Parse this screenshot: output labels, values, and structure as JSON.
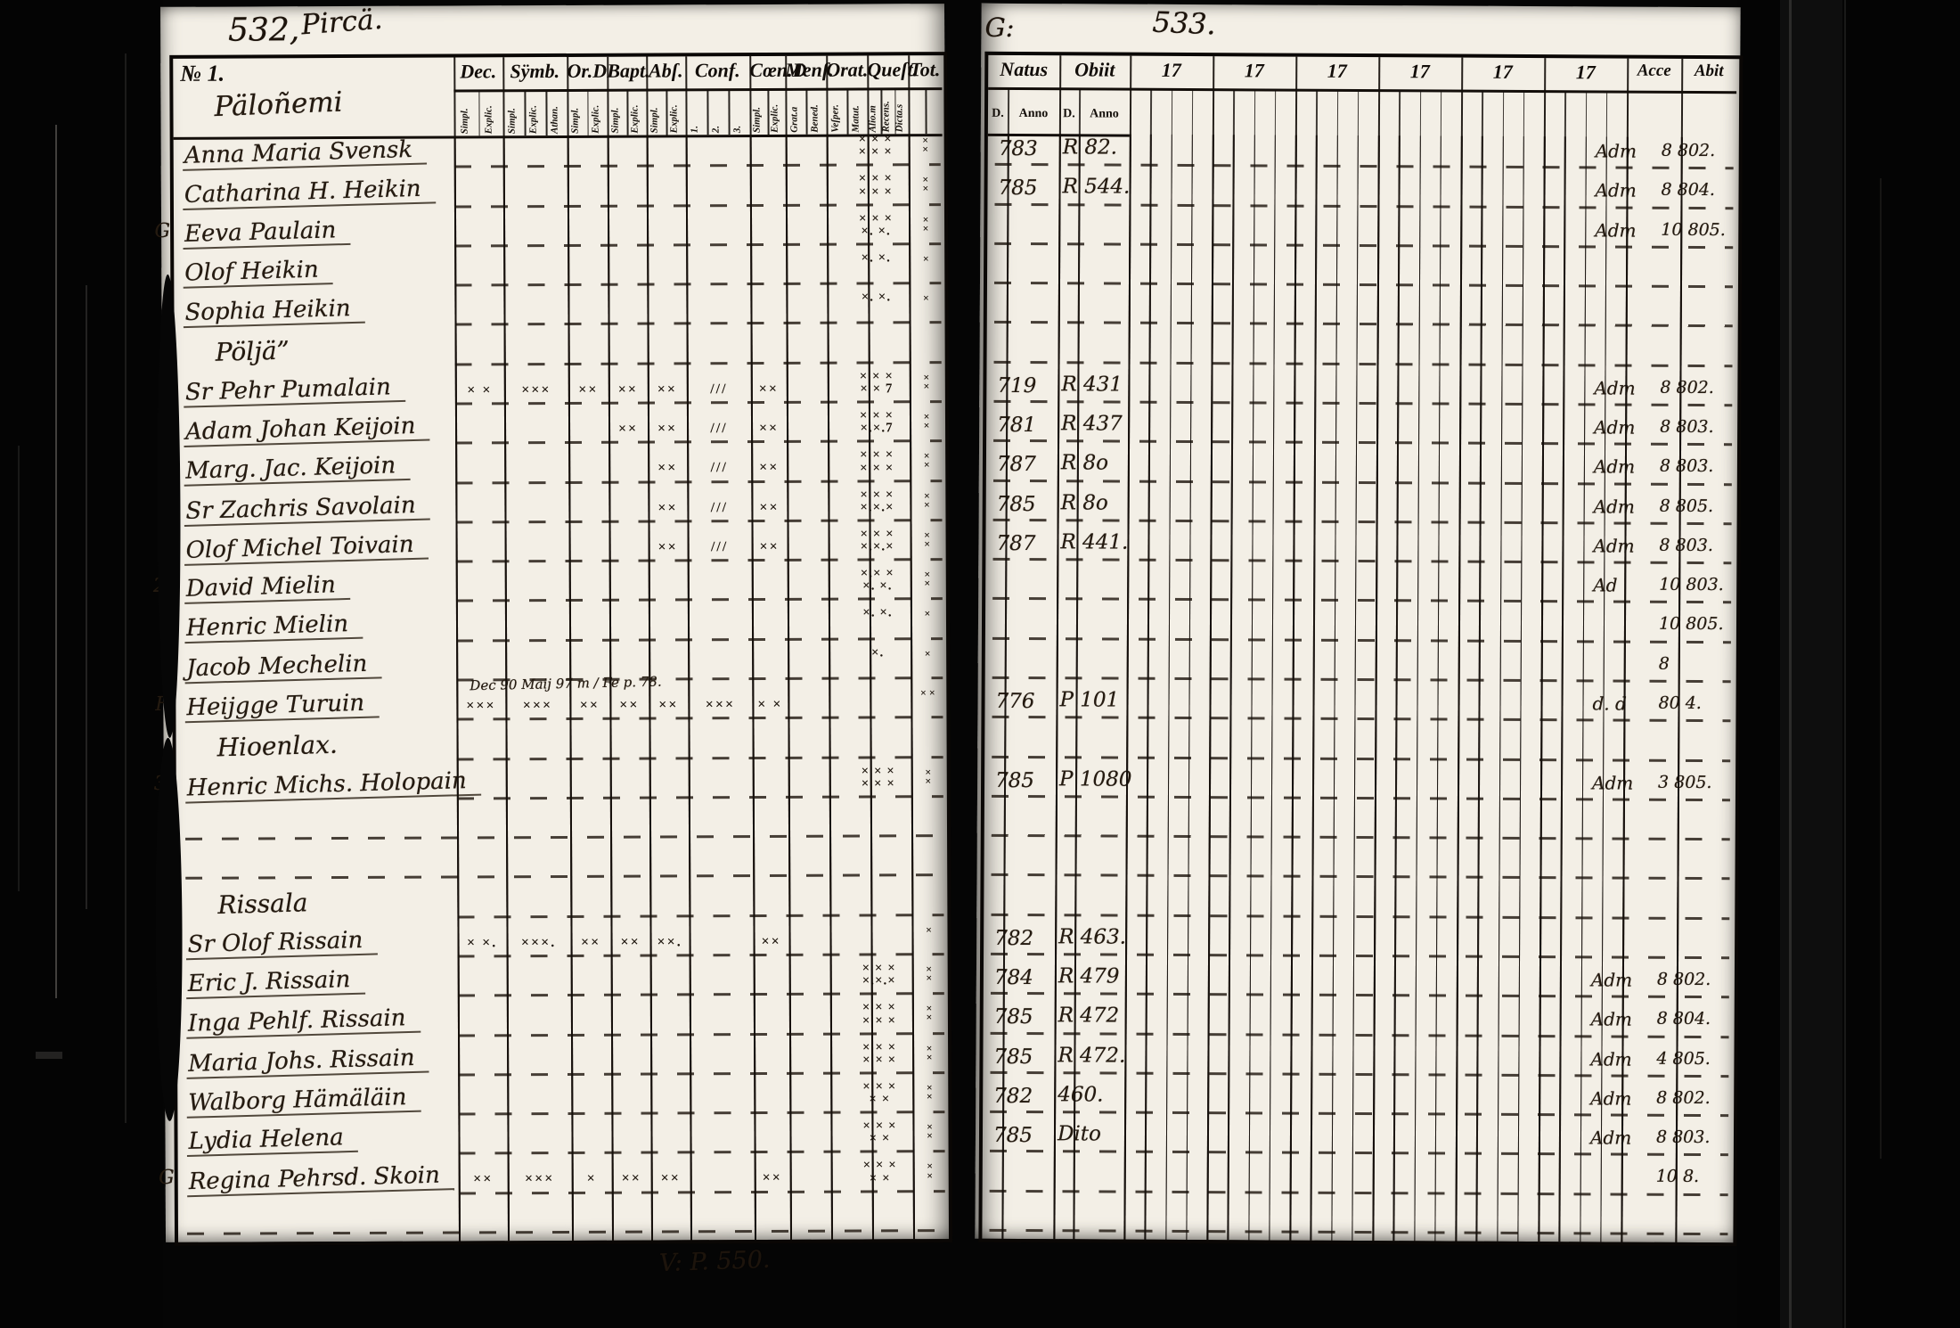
{
  "annotations": {
    "left_page_number": "532,",
    "left_note": "Pircä.",
    "right_letter": "G:",
    "right_page_number": "533.",
    "footer_note": "V: P. 550."
  },
  "colors": {
    "paper": "#f3efe6",
    "ink": "#241a10",
    "scan_black": "#050505"
  },
  "left_table": {
    "corner_no": "№ 1.",
    "corner_title": "Päloñemi",
    "columns": [
      {
        "id": "dec",
        "label": "Dec.",
        "subs": [
          "Simpl.",
          "Explic."
        ]
      },
      {
        "id": "symb",
        "label": "Sÿmb.",
        "subs": [
          "Simpl.",
          "Explic.",
          "Athan."
        ]
      },
      {
        "id": "ord",
        "label": "Or.D",
        "subs": [
          "Simpl.",
          "Explic."
        ]
      },
      {
        "id": "bapt",
        "label": "Bapt.",
        "subs": [
          "Simpl.",
          "Explic."
        ]
      },
      {
        "id": "abs",
        "label": "Abſ.",
        "subs": [
          "Simpl.",
          "Explic."
        ]
      },
      {
        "id": "conf",
        "label": "Conf.",
        "subs": [
          "1.",
          "2.",
          "3."
        ]
      },
      {
        "id": "coen",
        "label": "Cœn.D",
        "subs": [
          "Simpl.",
          "Explic."
        ]
      },
      {
        "id": "mens",
        "label": "Menſ.",
        "subs": [
          "Grat.a",
          "Bened."
        ]
      },
      {
        "id": "orat",
        "label": "Orat.",
        "subs": [
          "Veſper.",
          "Matut."
        ]
      },
      {
        "id": "quest",
        "label": "Queſt.",
        "subs": [
          "Alio.m",
          "Recens.",
          "Dicta.s"
        ]
      },
      {
        "id": "tot",
        "label": "Tot.",
        "subs": [
          "",
          ""
        ]
      }
    ]
  },
  "right_table": {
    "natus_label": "Natus",
    "obiit_label": "Obiit",
    "year_label": "17",
    "year_column_count": 6,
    "natus_subs": [
      "D.",
      "Anno"
    ],
    "obiit_subs": [
      "D.",
      "Anno"
    ],
    "acce_label": "Acce",
    "abit_label": "Abit"
  },
  "rows": [
    {
      "type": "person",
      "name": "Anna Maria Svensk",
      "quest": "× × ×\n× × ×",
      "edge": "×\n×",
      "natus": "783",
      "obiit": "R 82.",
      "acce": "Adm",
      "abit": "8 802."
    },
    {
      "type": "person",
      "name": "Catharina H. Heikin",
      "quest": "× × ×\n× × ×",
      "edge": "×\n×",
      "natus": "785",
      "obiit": "R 544.",
      "acce": "Adm",
      "abit": "8 804."
    },
    {
      "type": "person",
      "prefix": "G",
      "name": "Eeva Paulain",
      "quest": "× × ×\n×. ×.",
      "edge": "×\n×",
      "acce": "Adm",
      "abit": "10 805."
    },
    {
      "type": "person",
      "name": "Olof Heikin",
      "quest": "×. ×.",
      "edge": "×"
    },
    {
      "type": "person",
      "name": "Sophia Heikin",
      "quest": "×. ×.",
      "edge": "×"
    },
    {
      "type": "heading",
      "name": "Pöljä”"
    },
    {
      "type": "person",
      "name": "Sr Pehr Pumalain",
      "marks": {
        "dec": "× ×",
        "symb": "×××",
        "ord": "××",
        "bapt": "××",
        "abs": "××",
        "conf": "///",
        "coen": "××"
      },
      "quest": "× × ×\n× × 7",
      "edge": "×\n×",
      "natus": "719",
      "obiit": "R 431",
      "acce": "Adm",
      "abit": "8 802."
    },
    {
      "type": "person",
      "name": "Adam Johan Keijoin",
      "marks": {
        "bapt": "××",
        "abs": "××",
        "conf": "///",
        "coen": "××"
      },
      "quest": "× × ×\n×.×.7",
      "edge": "×\n×",
      "natus": "781",
      "obiit": "R 437",
      "acce": "Adm",
      "abit": "8 803."
    },
    {
      "type": "person",
      "name": "Marg. Jac. Keijoin",
      "marks": {
        "abs": "××",
        "conf": "///",
        "coen": "××"
      },
      "quest": "× × ×\n× × ×",
      "edge": "×\n×",
      "natus": "787",
      "obiit": "R 8o",
      "acce": "Adm",
      "abit": "8 803."
    },
    {
      "type": "person",
      "name": "Sr Zachris Savolain",
      "marks": {
        "abs": "××",
        "conf": "///",
        "coen": "××"
      },
      "quest": "× × ×\n×.×.×",
      "edge": "×\n×",
      "natus": "785",
      "obiit": "R 8o",
      "acce": "Adm",
      "abit": "8 805."
    },
    {
      "type": "person",
      "name": "Olof Michel Toivain",
      "marks": {
        "abs": "××",
        "conf": "///",
        "coen": "××"
      },
      "quest": "× × ×\n×.×.×",
      "edge": "×\n×",
      "natus": "787",
      "obiit": "R 441.",
      "acce": "Adm",
      "abit": "8 803."
    },
    {
      "type": "person",
      "prefix": "2.",
      "name": "David Mielin",
      "quest": "×.× ×\n×. ×.",
      "edge": "×\n×",
      "acce": "Ad",
      "abit": "10 803."
    },
    {
      "type": "person",
      "name": "Henric Mielin",
      "quest": "×. ×.",
      "edge": "×",
      "abit": "10 805."
    },
    {
      "type": "person",
      "name": "Jacob Mechelin",
      "quest": "×.",
      "edge": "×",
      "abit": "8"
    },
    {
      "type": "person",
      "prefix": "H",
      "name": "Heijgge Turuin",
      "note": "Dec 90 Maij 97 m / Fe p. 78.",
      "marks": {
        "dec": "×××",
        "symb": "×××",
        "ord": "××",
        "bapt": "××",
        "abs": "××",
        "conf": "×××",
        "coen": "× ×"
      },
      "edge": "× ×",
      "natus": "776",
      "obiit": "P 101",
      "acce": "d. d",
      "abit": "80 4."
    },
    {
      "type": "heading",
      "name": "Hioenlax."
    },
    {
      "type": "person",
      "prefix": "3.",
      "name": "Henric Michs. Holopain",
      "quest": "× × ×\n× × ×",
      "edge": "×\n×",
      "natus": "785",
      "obiit": "P 1080",
      "acce": "Adm",
      "abit": "3 805."
    },
    {
      "type": "empty"
    },
    {
      "type": "empty"
    },
    {
      "type": "heading",
      "name": "Rissala"
    },
    {
      "type": "person",
      "name": "Sr Olof Rissain",
      "marks": {
        "dec": "× ×.",
        "symb": "×××.",
        "ord": "××",
        "bapt": "××",
        "abs": "××.",
        "coen": "××"
      },
      "edge": "×",
      "natus": "782",
      "obiit": "R 463."
    },
    {
      "type": "person",
      "name": "Eric J. Rissain",
      "quest": "× × ×\n×.×.×",
      "edge": "×\n×",
      "natus": "784",
      "obiit": "R 479",
      "acce": "Adm",
      "abit": "8 802."
    },
    {
      "type": "person",
      "name": "Inga Pehlf. Rissain",
      "quest": "× × ×\n× × ×",
      "edge": "×\n×",
      "natus": "785",
      "obiit": "R 472",
      "acce": "Adm",
      "abit": "8 804."
    },
    {
      "type": "person",
      "name": "Maria Johs. Rissain",
      "quest": "× × ×\n× × ×",
      "edge": "×\n×",
      "natus": "785",
      "obiit": "R 472.",
      "acce": "Adm",
      "abit": "4 805."
    },
    {
      "type": "person",
      "name": "Walborg Hämäläin",
      "quest": "× × ×\n× ×",
      "edge": "×\n×",
      "natus": "782",
      "obiit": "460.",
      "acce": "Adm",
      "abit": "8 802."
    },
    {
      "type": "person",
      "name": "Lydia Helena",
      "quest": "× × ×\n× ×",
      "edge": "×\n×",
      "natus": "785",
      "obiit": "Dito",
      "acce": "Adm",
      "abit": "8 803."
    },
    {
      "type": "person",
      "prefix": "G",
      "name": "Regina Pehrsd. Skoin",
      "marks": {
        "dec": "××",
        "symb": "×××",
        "ord": "×",
        "bapt": "××",
        "abs": "××",
        "coen": "××"
      },
      "quest": "× × ×\n× ×",
      "edge": "×\n×",
      "abit": "10 8."
    },
    {
      "type": "empty"
    }
  ]
}
